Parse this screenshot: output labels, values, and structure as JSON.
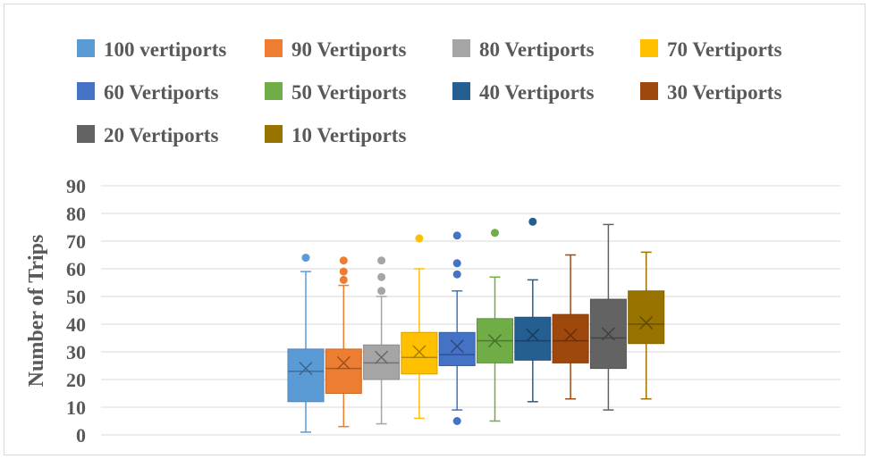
{
  "chart_data": {
    "type": "box",
    "title": "",
    "xlabel": "",
    "ylabel": "Number of Trips",
    "ylim": [
      0,
      90
    ],
    "yticks": [
      "0",
      "10",
      "20",
      "30",
      "40",
      "50",
      "60",
      "70",
      "80",
      "90"
    ],
    "grid": true,
    "legend_position": "top",
    "series": [
      {
        "name": "100 vertiports",
        "color": "#5b9bd5",
        "min": 1,
        "q1": 12,
        "median": 23,
        "mean": 24,
        "q3": 31,
        "max": 59,
        "outliers": [
          64
        ]
      },
      {
        "name": "90 Vertiports",
        "color": "#ed7d31",
        "min": 3,
        "q1": 15,
        "median": 24,
        "mean": 26,
        "q3": 31,
        "max": 54,
        "outliers": [
          56,
          59,
          63
        ]
      },
      {
        "name": "80 Vertiports",
        "color": "#a5a5a5",
        "min": 4,
        "q1": 20,
        "median": 26,
        "mean": 28,
        "q3": 32.5,
        "max": 50,
        "outliers": [
          52,
          57,
          63
        ]
      },
      {
        "name": "70 Vertiports",
        "color": "#ffc000",
        "min": 6,
        "q1": 22,
        "median": 28,
        "mean": 30,
        "q3": 37,
        "max": 60,
        "outliers": [
          71
        ]
      },
      {
        "name": "60 Vertiports",
        "color": "#4472c4",
        "min": 9,
        "q1": 25,
        "median": 29,
        "mean": 32,
        "q3": 37,
        "max": 52,
        "outliers": [
          5,
          58,
          62,
          72
        ]
      },
      {
        "name": "50 Vertiports",
        "color": "#70ad47",
        "min": 5,
        "q1": 26,
        "median": 34,
        "mean": 34,
        "q3": 42,
        "max": 57,
        "outliers": [
          73
        ]
      },
      {
        "name": "40 Vertiports",
        "color": "#255e91",
        "min": 12,
        "q1": 27,
        "median": 34,
        "mean": 36,
        "q3": 42.5,
        "max": 56,
        "outliers": [
          77
        ]
      },
      {
        "name": "30 Vertiports",
        "color": "#9e480e",
        "min": 13,
        "q1": 26,
        "median": 34,
        "mean": 36,
        "q3": 43.5,
        "max": 65,
        "outliers": []
      },
      {
        "name": "20 Vertiports",
        "color": "#636363",
        "min": 9,
        "q1": 24,
        "median": 35,
        "mean": 36.5,
        "q3": 49,
        "max": 76,
        "outliers": []
      },
      {
        "name": "10 Vertiports",
        "color": "#997300",
        "min": 13,
        "q1": 33,
        "median": 40,
        "mean": 40.5,
        "q3": 52,
        "max": 66,
        "outliers": []
      }
    ]
  }
}
